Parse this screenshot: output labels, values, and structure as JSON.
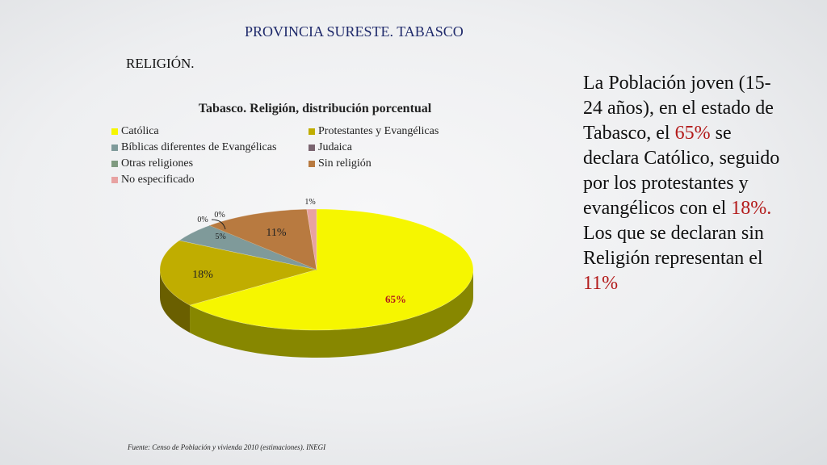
{
  "slide": {
    "title": "PROVINCIA SURESTE. TABASCO",
    "section": "RELIGIÓN."
  },
  "chart_data": {
    "type": "pie",
    "title": "Tabasco. Religión, distribución porcentual",
    "legend_position": "top",
    "slices": [
      {
        "name": "Católica",
        "value": 65,
        "label": "65%",
        "color": "#f6f600"
      },
      {
        "name": "Protestantes y Evangélicas",
        "value": 18,
        "label": "18%",
        "color": "#c0ad00"
      },
      {
        "name": "Bíblicas diferentes de Evangélicas",
        "value": 5,
        "label": "5%",
        "color": "#7f9a9a"
      },
      {
        "name": "Judaica",
        "value": 0,
        "label": "0%",
        "color": "#7a6470"
      },
      {
        "name": "Otras religiones",
        "value": 0,
        "label": "0%",
        "color": "#7f9a80"
      },
      {
        "name": "Sin religión",
        "value": 11,
        "label": "11%",
        "color": "#b87a40"
      },
      {
        "name": "No especificado",
        "value": 1,
        "label": "1%",
        "color": "#e8a2a2"
      }
    ]
  },
  "side_text": {
    "p1": "La Población joven (15-24 años), en el estado de Tabasco, el ",
    "h1": "65%",
    "p2": " se declara Católico, seguido por los protestantes y evangélicos con el ",
    "h2": "18%.",
    "p3": " Los que se declaran sin Religión representan el ",
    "h3": "11%"
  },
  "source": "Fuente: Censo de Población y vivienda 2010 (estimaciones). INEGI"
}
